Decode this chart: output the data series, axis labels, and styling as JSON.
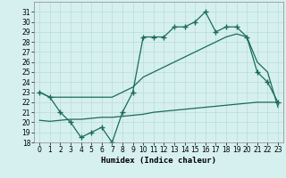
{
  "line1_x": [
    0,
    1,
    2,
    3,
    4,
    5,
    6,
    7,
    8,
    9,
    10,
    11,
    12,
    13,
    14,
    15,
    16,
    17,
    18,
    19,
    20,
    21,
    22,
    23
  ],
  "line1_y": [
    23.0,
    22.5,
    21.0,
    20.0,
    18.5,
    19.0,
    19.5,
    18.0,
    21.0,
    23.0,
    28.5,
    28.5,
    28.5,
    29.5,
    29.5,
    30.0,
    31.0,
    29.0,
    29.5,
    29.5,
    28.5,
    25.0,
    24.0,
    22.0
  ],
  "line2_x": [
    0,
    1,
    2,
    3,
    4,
    5,
    6,
    7,
    8,
    9,
    10,
    11,
    12,
    13,
    14,
    15,
    16,
    17,
    18,
    19,
    20,
    21,
    22,
    23
  ],
  "line2_y": [
    23.0,
    22.5,
    22.5,
    22.5,
    22.5,
    22.5,
    22.5,
    22.5,
    23.0,
    23.5,
    24.5,
    25.0,
    25.5,
    26.0,
    26.5,
    27.0,
    27.5,
    28.0,
    28.5,
    28.8,
    28.5,
    26.0,
    25.0,
    21.5
  ],
  "line3_x": [
    0,
    1,
    2,
    3,
    4,
    5,
    6,
    7,
    8,
    9,
    10,
    11,
    12,
    13,
    14,
    15,
    16,
    17,
    18,
    19,
    20,
    21,
    22,
    23
  ],
  "line3_y": [
    20.2,
    20.1,
    20.2,
    20.3,
    20.3,
    20.4,
    20.5,
    20.5,
    20.6,
    20.7,
    20.8,
    21.0,
    21.1,
    21.2,
    21.3,
    21.4,
    21.5,
    21.6,
    21.7,
    21.8,
    21.9,
    22.0,
    22.0,
    22.0
  ],
  "color": "#1a6b5a",
  "bg_color": "#d6f0ef",
  "grid_color": "#b8dcd8",
  "xlabel": "Humidex (Indice chaleur)",
  "ylim": [
    18,
    32
  ],
  "xlim": [
    -0.5,
    23.5
  ],
  "yticks": [
    18,
    19,
    20,
    21,
    22,
    23,
    24,
    25,
    26,
    27,
    28,
    29,
    30,
    31
  ],
  "xticks": [
    0,
    1,
    2,
    3,
    4,
    5,
    6,
    7,
    8,
    9,
    10,
    11,
    12,
    13,
    14,
    15,
    16,
    17,
    18,
    19,
    20,
    21,
    22,
    23
  ],
  "marker": "+",
  "markersize": 4,
  "linewidth": 0.9,
  "tick_labelsize": 5.5,
  "xlabel_fontsize": 6.5
}
